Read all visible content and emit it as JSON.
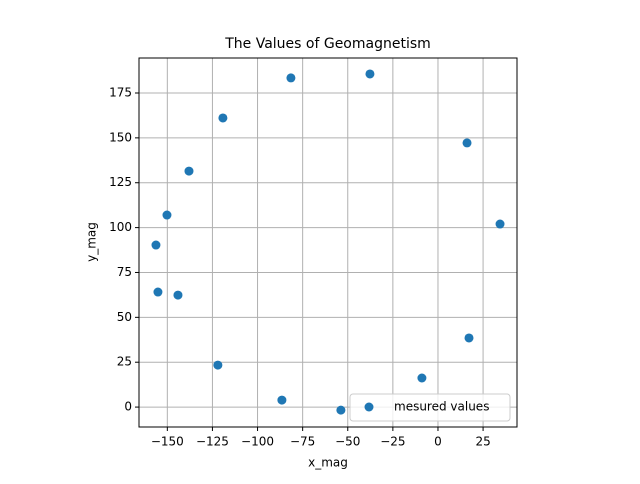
{
  "chart_data": {
    "type": "scatter",
    "title": "The Values of Geomagnetism",
    "x_label": "x_mag",
    "y_label": "y_mag",
    "series": [
      {
        "name": "mesured values",
        "color": "#1f77b4",
        "x": [
          -81.5,
          -37.7,
          -119.2,
          16.1,
          -138.0,
          -150.2,
          34.4,
          -156.3,
          -155.2,
          -144.1,
          17.2,
          -122.0,
          -8.9,
          -86.5,
          -53.8
        ],
        "values": [
          183.4,
          185.6,
          161.1,
          147.2,
          131.5,
          107.0,
          102.0,
          90.3,
          64.1,
          62.4,
          38.5,
          23.4,
          16.2,
          3.9,
          -1.7
        ]
      }
    ],
    "xlim": [
      -165.7,
      43.8
    ],
    "ylim": [
      -11.1,
      194.5
    ],
    "xticks": [
      {
        "value": -150,
        "label": "−150"
      },
      {
        "value": -125,
        "label": "−125"
      },
      {
        "value": -100,
        "label": "−100"
      },
      {
        "value": -75,
        "label": "−75"
      },
      {
        "value": -50,
        "label": "−50"
      },
      {
        "value": -25,
        "label": "−25"
      },
      0,
      25
    ],
    "yticks": [
      0,
      25,
      50,
      75,
      100,
      125,
      150,
      175
    ],
    "grid": true,
    "legend": "lower right"
  }
}
